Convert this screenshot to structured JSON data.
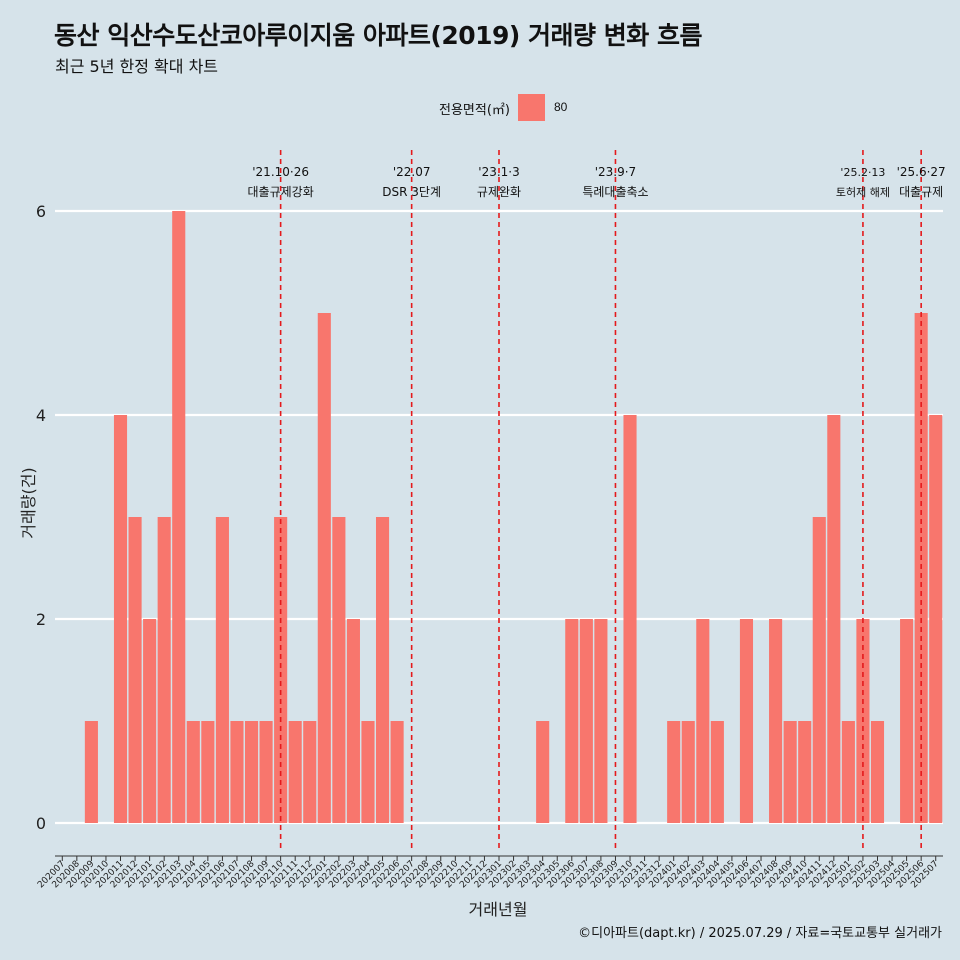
{
  "title": "동산 익산수도산코아루이지움 아파트(2019) 거래량 변화 흐름",
  "subtitle": "최근 5년 한정 확대 차트",
  "legend": {
    "title": "전용면적(㎡)",
    "label": "80"
  },
  "caption": "©디아파트(dapt.kr) / 2025.07.29 / 자료=국토교통부 실거래가",
  "chart_data": {
    "type": "bar",
    "xlabel": "거래년월",
    "ylabel": "거래량(건)",
    "ylim": [
      0,
      6
    ],
    "y_ticks": [
      0,
      2,
      4,
      6
    ],
    "grid": true,
    "legend_position": "top",
    "bar_color": "#f8766d",
    "vline_color": "#e41a1c",
    "categories": [
      "202007",
      "202008",
      "202009",
      "202010",
      "202011",
      "202012",
      "202101",
      "202102",
      "202103",
      "202104",
      "202105",
      "202106",
      "202107",
      "202108",
      "202109",
      "202110",
      "202111",
      "202112",
      "202201",
      "202202",
      "202203",
      "202204",
      "202205",
      "202206",
      "202207",
      "202208",
      "202209",
      "202210",
      "202211",
      "202212",
      "202301",
      "202302",
      "202303",
      "202304",
      "202305",
      "202306",
      "202307",
      "202308",
      "202309",
      "202310",
      "202311",
      "202312",
      "202401",
      "202402",
      "202403",
      "202404",
      "202405",
      "202406",
      "202407",
      "202408",
      "202409",
      "202410",
      "202411",
      "202412",
      "202501",
      "202502",
      "202503",
      "202504",
      "202505",
      "202506",
      "202507"
    ],
    "series": [
      {
        "name": "80",
        "values": [
          0,
          0,
          1,
          0,
          4,
          3,
          2,
          3,
          6,
          1,
          1,
          3,
          1,
          1,
          1,
          3,
          1,
          1,
          5,
          3,
          2,
          1,
          3,
          1,
          0,
          0,
          0,
          0,
          0,
          0,
          0,
          0,
          0,
          1,
          0,
          2,
          2,
          2,
          0,
          4,
          0,
          0,
          1,
          1,
          2,
          1,
          0,
          2,
          0,
          2,
          1,
          1,
          3,
          4,
          1,
          2,
          1,
          0,
          2,
          5,
          4
        ]
      }
    ],
    "annotations": [
      {
        "category": "202110",
        "date": "'21.10·26",
        "text": "대출규제강화"
      },
      {
        "category": "202207",
        "date": "'22.07",
        "text": "DSR 3단계"
      },
      {
        "category": "202301",
        "date": "'23.1·3",
        "text": "규제완화"
      },
      {
        "category": "202309",
        "date": "'23.9·7",
        "text": "특례대출축소"
      },
      {
        "category": "202502",
        "date": "'25.2·13",
        "text": "토허제 해제"
      },
      {
        "category": "202506",
        "date": "'25.6·27",
        "text": "대출규제"
      }
    ]
  }
}
